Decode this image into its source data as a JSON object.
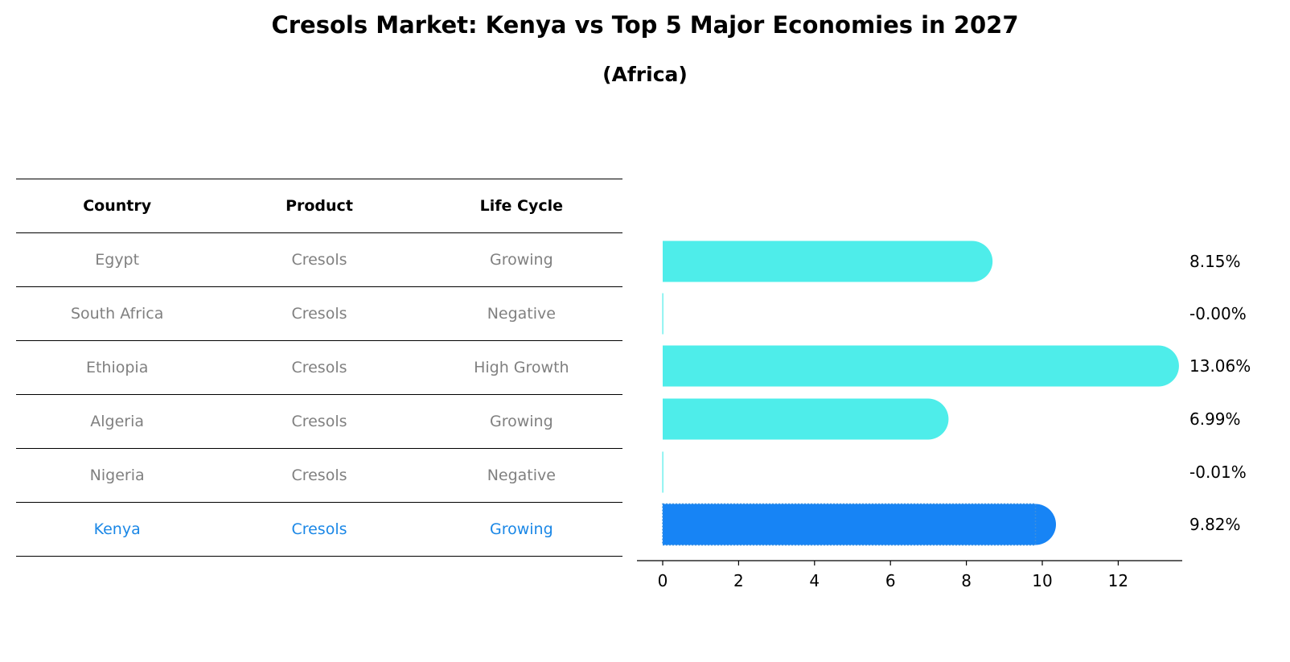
{
  "title": "Cresols Market: Kenya vs Top 5 Major Economies in 2027",
  "subtitle": "(Africa)",
  "colors": {
    "bar": "#4EEDEA",
    "highlight": "#1784F5",
    "muted_text": "#808080",
    "highlight_text": "#1a87e6"
  },
  "table": {
    "headers": [
      "Country",
      "Product",
      "Life Cycle"
    ],
    "rows": [
      {
        "country": "Egypt",
        "product": "Cresols",
        "life_cycle": "Growing"
      },
      {
        "country": "South Africa",
        "product": "Cresols",
        "life_cycle": "Negative"
      },
      {
        "country": "Ethiopia",
        "product": "Cresols",
        "life_cycle": "High Growth"
      },
      {
        "country": "Algeria",
        "product": "Cresols",
        "life_cycle": "Growing"
      },
      {
        "country": "Nigeria",
        "product": "Cresols",
        "life_cycle": "Negative"
      },
      {
        "country": "Kenya",
        "product": "Cresols",
        "life_cycle": "Growing",
        "highlight": true
      }
    ]
  },
  "chart_data": {
    "type": "bar",
    "orientation": "horizontal",
    "categories": [
      "Egypt",
      "South Africa",
      "Ethiopia",
      "Algeria",
      "Nigeria",
      "Kenya"
    ],
    "values": [
      8.15,
      -0.0,
      13.06,
      6.99,
      -0.01,
      9.82
    ],
    "value_labels": [
      "8.15%",
      "-0.00%",
      "13.06%",
      "6.99%",
      "-0.01%",
      "9.82%"
    ],
    "highlight_index": 5,
    "xlim": [
      -0.7,
      13.7
    ],
    "xticks": [
      0,
      2,
      4,
      6,
      8,
      10,
      12
    ],
    "grid": false
  }
}
